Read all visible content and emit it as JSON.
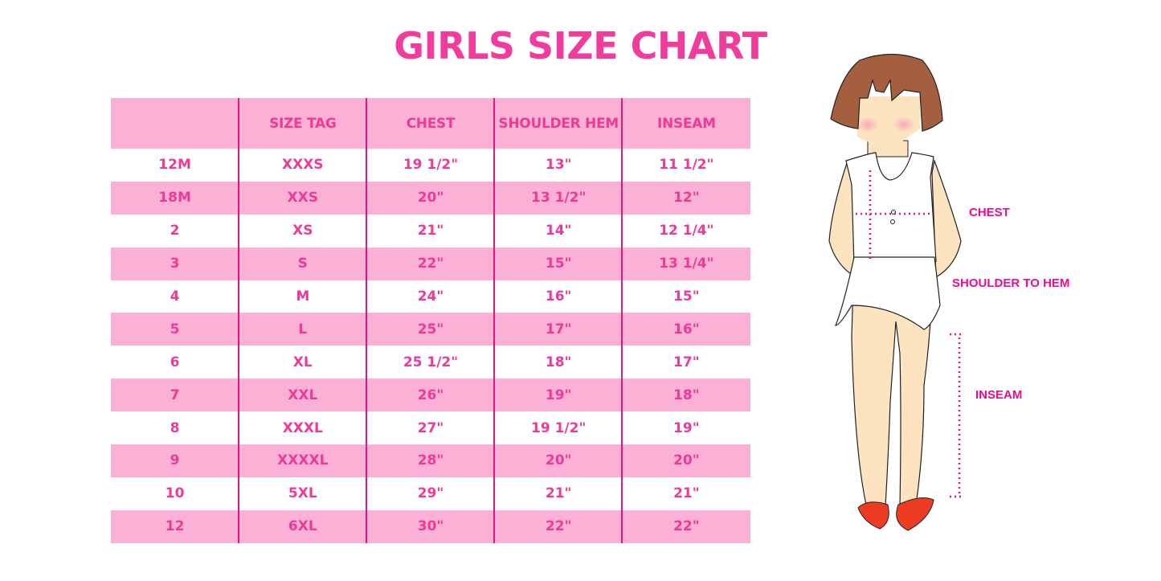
{
  "title": "GIRLS SIZE CHART",
  "table": {
    "headers": [
      "",
      "SIZE TAG",
      "CHEST",
      "SHOULDER HEM",
      "INSEAM"
    ],
    "rows": [
      [
        "12M",
        "XXXS",
        "19 1/2\"",
        "13\"",
        "11 1/2\""
      ],
      [
        "18M",
        "XXS",
        "20\"",
        "13 1/2\"",
        "12\""
      ],
      [
        "2",
        "XS",
        "21\"",
        "14\"",
        "12 1/4\""
      ],
      [
        "3",
        "S",
        "22\"",
        "15\"",
        "13 1/4\""
      ],
      [
        "4",
        "M",
        "24\"",
        "16\"",
        "15\""
      ],
      [
        "5",
        "L",
        "25\"",
        "17\"",
        "16\""
      ],
      [
        "6",
        "XL",
        "25 1/2\"",
        "18\"",
        "17\""
      ],
      [
        "7",
        "XXL",
        "26\"",
        "19\"",
        "18\""
      ],
      [
        "8",
        "XXXL",
        "27\"",
        "19 1/2\"",
        "19\""
      ],
      [
        "9",
        "XXXXL",
        "28\"",
        "20\"",
        "20\""
      ],
      [
        "10",
        "5XL",
        "29\"",
        "21\"",
        "21\""
      ],
      [
        "12",
        "6XL",
        "30\"",
        "22\"",
        "22\""
      ]
    ]
  },
  "illustration": {
    "labels": {
      "chest": "CHEST",
      "shoulder_to_hem": "SHOULDER TO HEM",
      "inseam": "INSEAM"
    }
  },
  "colors": {
    "title": "#f03c9b",
    "row_pink": "#fbb0d6",
    "divider": "#e3157f",
    "measure": "#ec0c8c"
  }
}
